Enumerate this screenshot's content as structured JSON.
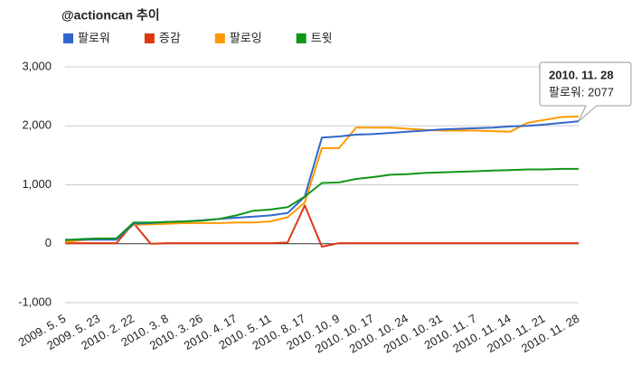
{
  "chart_data": {
    "type": "line",
    "title": "@actioncan 추이",
    "categories": [
      "2009. 5. 5",
      null,
      "2009. 5. 23",
      null,
      "2010. 2. 22",
      null,
      "2010. 3. 8",
      null,
      "2010. 3. 26",
      null,
      "2010. 4. 17",
      null,
      "2010. 5. 11",
      null,
      "2010. 8. 17",
      null,
      "2010. 10. 9",
      null,
      "2010. 10. 17",
      null,
      "2010. 10. 24",
      null,
      "2010. 10. 31",
      null,
      "2010. 11. 7",
      null,
      "2010. 11. 14",
      null,
      "2010. 11. 21",
      null,
      "2010. 11. 28"
    ],
    "series": [
      {
        "name": "팔로워",
        "color": "#3366cc",
        "values": [
          70,
          70,
          70,
          70,
          340,
          350,
          370,
          380,
          400,
          420,
          440,
          460,
          480,
          520,
          800,
          1800,
          1820,
          1850,
          1860,
          1880,
          1900,
          1920,
          1940,
          1950,
          1960,
          1970,
          1990,
          2000,
          2020,
          2050,
          2077
        ]
      },
      {
        "name": "증감",
        "color": "#dc3912",
        "values": [
          10,
          10,
          10,
          10,
          350,
          0,
          10,
          10,
          10,
          10,
          10,
          10,
          10,
          20,
          650,
          -50,
          10,
          10,
          10,
          10,
          10,
          10,
          10,
          10,
          10,
          10,
          10,
          10,
          10,
          10,
          10
        ]
      },
      {
        "name": "팔로잉",
        "color": "#ff9900",
        "values": [
          30,
          60,
          80,
          80,
          320,
          330,
          340,
          350,
          350,
          350,
          360,
          360,
          380,
          450,
          700,
          1620,
          1620,
          1970,
          1970,
          1970,
          1950,
          1930,
          1920,
          1920,
          1920,
          1910,
          1900,
          2050,
          2100,
          2150,
          2160
        ]
      },
      {
        "name": "트윗",
        "color": "#109618",
        "values": [
          60,
          80,
          90,
          90,
          360,
          360,
          370,
          380,
          390,
          420,
          480,
          560,
          580,
          620,
          800,
          1030,
          1040,
          1100,
          1130,
          1170,
          1180,
          1200,
          1210,
          1220,
          1230,
          1240,
          1250,
          1260,
          1260,
          1270,
          1270
        ]
      }
    ],
    "ylim": [
      -1000,
      3000
    ],
    "yticks": [
      {
        "value": -1000,
        "label": "-1,000"
      },
      0,
      {
        "value": 1000,
        "label": "1,000"
      },
      {
        "value": 2000,
        "label": "2,000"
      },
      {
        "value": 3000,
        "label": "3,000"
      }
    ],
    "grid": true,
    "legend": "top",
    "tooltip": {
      "title": "2010. 11. 28",
      "text": "팔로워: 2077"
    }
  }
}
